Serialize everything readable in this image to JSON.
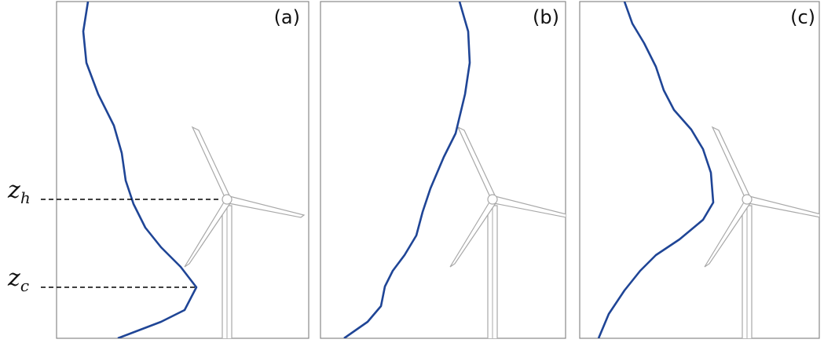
{
  "panels": [
    {
      "label": "(a)"
    },
    {
      "label": "(b)"
    },
    {
      "label": "(c)"
    }
  ],
  "heights": [
    {
      "symbol": "z",
      "subscript": "h"
    },
    {
      "symbol": "z",
      "subscript": "c"
    }
  ]
}
